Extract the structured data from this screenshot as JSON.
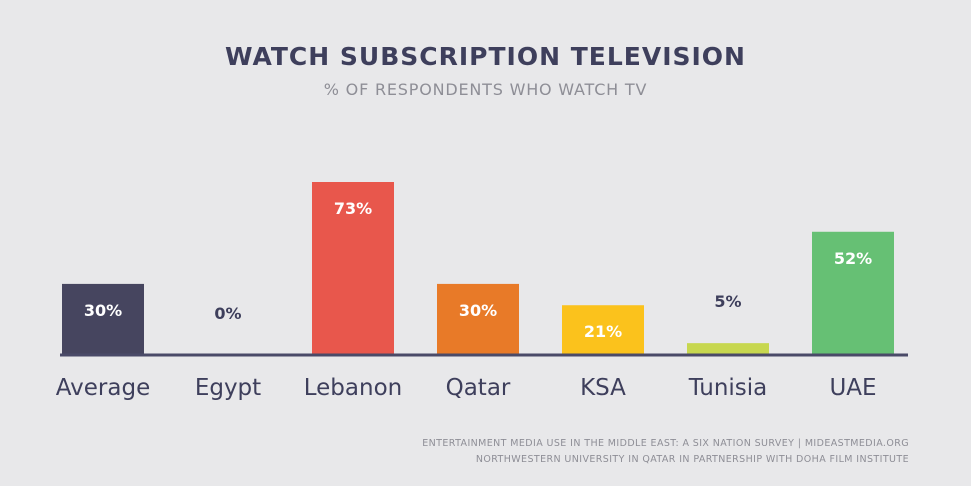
{
  "title": "WATCH SUBSCRIPTION TELEVISION",
  "subtitle": "% OF RESPONDENTS WHO WATCH TV",
  "source": {
    "line1": "ENTERTAINMENT MEDIA USE IN THE MIDDLE EAST: A SIX NATION SURVEY | MIDEASTMEDIA.ORG",
    "line2": "NORTHWESTERN UNIVERSITY IN QATAR IN PARTNERSHIP WITH DOHA FILM INSTITUTE"
  },
  "colors": {
    "axis": "#4a4a68",
    "label_text": "#3e3f5c",
    "value_text_on_bar": "#ffffff",
    "value_text_outside": "#3e3f5c"
  },
  "chart_data": {
    "type": "bar",
    "title": "WATCH SUBSCRIPTION TELEVISION",
    "subtitle": "% OF RESPONDENTS WHO WATCH TV",
    "categories": [
      "Average",
      "Egypt",
      "Lebanon",
      "Qatar",
      "KSA",
      "Tunisia",
      "UAE"
    ],
    "values": [
      30,
      0,
      73,
      30,
      21,
      5,
      52
    ],
    "value_labels": [
      "30%",
      "0%",
      "73%",
      "30%",
      "21%",
      "5%",
      "52%"
    ],
    "bar_colors": [
      "#46455f",
      "#46455f",
      "#e8574c",
      "#e87a28",
      "#fbc21c",
      "#c7d74f",
      "#66c074"
    ],
    "ylim": [
      0,
      73
    ],
    "grid": false,
    "legend": "none"
  }
}
